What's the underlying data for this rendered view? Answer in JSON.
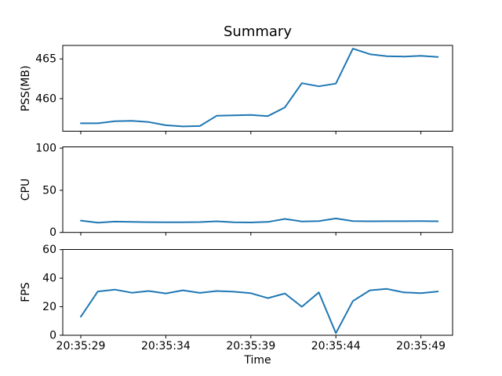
{
  "title": "Summary",
  "xlabel": "Time",
  "line_color": "#1f77b4",
  "x_tick_labels": [
    "20:35:29",
    "20:35:34",
    "20:35:39",
    "20:35:44",
    "20:35:49"
  ],
  "x_tick_seconds": [
    29,
    34,
    39,
    44,
    49
  ],
  "chart_data": [
    {
      "type": "line",
      "name": "pss",
      "title": "Summary",
      "ylabel": "PSS(MB)",
      "yticks": [
        460,
        465
      ],
      "ylim": [
        455.9,
        466.7
      ],
      "grid": false,
      "legend": false,
      "x": [
        "20:35:29",
        "20:35:30",
        "20:35:31",
        "20:35:32",
        "20:35:33",
        "20:35:34",
        "20:35:35",
        "20:35:36",
        "20:35:37",
        "20:35:38",
        "20:35:39",
        "20:35:40",
        "20:35:41",
        "20:35:42",
        "20:35:43",
        "20:35:44",
        "20:35:45",
        "20:35:46",
        "20:35:47",
        "20:35:48",
        "20:35:49",
        "20:35:50"
      ],
      "values": [
        456.9,
        456.9,
        457.15,
        457.2,
        457.05,
        456.65,
        456.5,
        456.55,
        457.85,
        457.9,
        457.95,
        457.8,
        458.9,
        461.95,
        461.55,
        461.9,
        466.3,
        465.6,
        465.35,
        465.3,
        465.4,
        465.25
      ]
    },
    {
      "type": "line",
      "name": "cpu",
      "ylabel": "CPU",
      "yticks": [
        0,
        50,
        100
      ],
      "ylim": [
        0,
        101.5
      ],
      "grid": false,
      "legend": false,
      "x": [
        "20:35:29",
        "20:35:30",
        "20:35:31",
        "20:35:32",
        "20:35:33",
        "20:35:34",
        "20:35:35",
        "20:35:36",
        "20:35:37",
        "20:35:38",
        "20:35:39",
        "20:35:40",
        "20:35:41",
        "20:35:42",
        "20:35:43",
        "20:35:44",
        "20:35:45",
        "20:35:46",
        "20:35:47",
        "20:35:48",
        "20:35:49",
        "20:35:50"
      ],
      "values": [
        14,
        11.5,
        12.8,
        12.5,
        12.2,
        12,
        12,
        12.3,
        13.2,
        12,
        11.8,
        12.5,
        16,
        13,
        13.5,
        16.5,
        13.5,
        13.2,
        13.3,
        13.3,
        13.4,
        13.2
      ]
    },
    {
      "type": "line",
      "name": "fps",
      "ylabel": "FPS",
      "xlabel": "Time",
      "yticks": [
        0,
        20,
        40,
        60
      ],
      "ylim": [
        0,
        60.1
      ],
      "grid": false,
      "legend": false,
      "x": [
        "20:35:29",
        "20:35:30",
        "20:35:31",
        "20:35:32",
        "20:35:33",
        "20:35:34",
        "20:35:35",
        "20:35:36",
        "20:35:37",
        "20:35:38",
        "20:35:39",
        "20:35:40",
        "20:35:41",
        "20:35:42",
        "20:35:43",
        "20:35:44",
        "20:35:45",
        "20:35:46",
        "20:35:47",
        "20:35:48",
        "20:35:49",
        "20:35:50"
      ],
      "values": [
        13,
        30.7,
        32,
        29.8,
        31,
        29.3,
        31.5,
        29.7,
        31,
        30.5,
        29.5,
        26,
        29.3,
        20,
        30,
        1.5,
        24,
        31.5,
        32.5,
        30,
        29.5,
        30.7
      ]
    }
  ]
}
